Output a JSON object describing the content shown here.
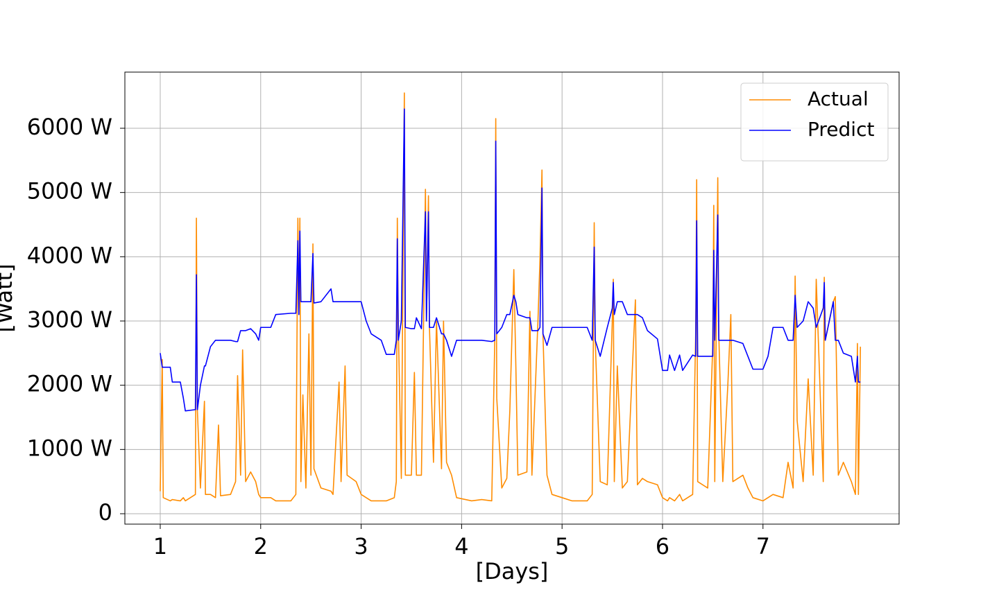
{
  "chart_data": {
    "type": "line",
    "xlabel": "[Days]",
    "ylabel": "[Watt]",
    "x": [
      1.0,
      1.02,
      1.03,
      1.1,
      1.12,
      1.2,
      1.23,
      1.25,
      1.35,
      1.36,
      1.37,
      1.4,
      1.44,
      1.45,
      1.5,
      1.55,
      1.58,
      1.6,
      1.7,
      1.75,
      1.77,
      1.8,
      1.82,
      1.85,
      1.9,
      1.95,
      1.98,
      2.0,
      2.1,
      2.15,
      2.3,
      2.35,
      2.37,
      2.38,
      2.39,
      2.4,
      2.42,
      2.45,
      2.48,
      2.5,
      2.52,
      2.53,
      2.6,
      2.7,
      2.72,
      2.78,
      2.8,
      2.84,
      2.86,
      2.95,
      3.0,
      3.05,
      3.1,
      3.2,
      3.25,
      3.33,
      3.35,
      3.36,
      3.37,
      3.4,
      3.43,
      3.44,
      3.5,
      3.53,
      3.55,
      3.6,
      3.64,
      3.65,
      3.67,
      3.68,
      3.72,
      3.75,
      3.8,
      3.82,
      3.85,
      3.9,
      3.95,
      4.1,
      4.2,
      4.3,
      4.33,
      4.34,
      4.35,
      4.4,
      4.45,
      4.48,
      4.52,
      4.54,
      4.56,
      4.65,
      4.68,
      4.7,
      4.76,
      4.78,
      4.8,
      4.81,
      4.85,
      4.9,
      5.0,
      5.1,
      5.25,
      5.3,
      5.32,
      5.33,
      5.38,
      5.45,
      5.5,
      5.51,
      5.52,
      5.55,
      5.6,
      5.65,
      5.73,
      5.75,
      5.8,
      5.85,
      5.95,
      6.0,
      6.05,
      6.07,
      6.12,
      6.17,
      6.2,
      6.3,
      6.33,
      6.34,
      6.35,
      6.45,
      6.5,
      6.51,
      6.52,
      6.55,
      6.56,
      6.6,
      6.65,
      6.68,
      6.7,
      6.8,
      6.85,
      6.9,
      7.0,
      7.05,
      7.1,
      7.2,
      7.25,
      7.3,
      7.32,
      7.34,
      7.4,
      7.45,
      7.5,
      7.53,
      7.6,
      7.61,
      7.62,
      7.7,
      7.72,
      7.75,
      7.8,
      7.88,
      7.92,
      7.94,
      7.95,
      7.97
    ],
    "series": [
      {
        "name": "Actual",
        "color": "#ff8c00",
        "values": [
          350,
          2400,
          250,
          200,
          220,
          200,
          250,
          200,
          300,
          4600,
          1600,
          400,
          1750,
          300,
          300,
          250,
          1380,
          280,
          300,
          500,
          2150,
          600,
          2550,
          500,
          650,
          500,
          300,
          250,
          250,
          200,
          200,
          300,
          4600,
          3200,
          4600,
          500,
          1850,
          400,
          2800,
          600,
          4200,
          700,
          400,
          350,
          300,
          2050,
          500,
          2300,
          600,
          500,
          300,
          250,
          200,
          200,
          200,
          250,
          500,
          4600,
          2900,
          550,
          6550,
          600,
          600,
          2200,
          600,
          600,
          5050,
          3000,
          4950,
          2900,
          800,
          3000,
          700,
          3000,
          800,
          600,
          250,
          200,
          220,
          200,
          2700,
          6150,
          1800,
          400,
          550,
          1600,
          3800,
          2300,
          600,
          650,
          3150,
          600,
          3000,
          3950,
          5350,
          2800,
          600,
          300,
          250,
          200,
          200,
          300,
          4530,
          2700,
          500,
          450,
          3000,
          3650,
          500,
          2300,
          400,
          500,
          3330,
          450,
          550,
          500,
          450,
          250,
          200,
          250,
          200,
          300,
          200,
          300,
          2800,
          5200,
          500,
          400,
          2600,
          4800,
          500,
          5230,
          2800,
          500,
          2000,
          3100,
          500,
          600,
          400,
          250,
          200,
          250,
          300,
          250,
          800,
          400,
          3700,
          1450,
          500,
          2100,
          600,
          3650,
          500,
          3680,
          2700,
          3300,
          3380,
          600,
          800,
          500,
          300,
          2650,
          300,
          2600
        ]
      },
      {
        "name": "Predict",
        "color": "#0000ff",
        "values": [
          2500,
          2280,
          2280,
          2280,
          2050,
          2050,
          1800,
          1600,
          1620,
          3720,
          1620,
          2000,
          2300,
          2300,
          2600,
          2700,
          2700,
          2700,
          2700,
          2680,
          2680,
          2850,
          2850,
          2850,
          2880,
          2800,
          2700,
          2900,
          2900,
          3100,
          3120,
          3120,
          4250,
          3100,
          4400,
          3300,
          3300,
          3300,
          3300,
          3300,
          4050,
          3280,
          3300,
          3500,
          3300,
          3300,
          3300,
          3300,
          3300,
          3300,
          3300,
          3000,
          2800,
          2700,
          2480,
          2480,
          2700,
          4280,
          2700,
          3000,
          6300,
          2900,
          2880,
          2880,
          3050,
          2880,
          4700,
          3000,
          4700,
          2900,
          2900,
          3050,
          2800,
          2800,
          2700,
          2450,
          2700,
          2700,
          2700,
          2680,
          2700,
          5800,
          2800,
          2900,
          3100,
          3100,
          3400,
          3300,
          3100,
          3050,
          3050,
          2850,
          2850,
          2900,
          5070,
          2800,
          2620,
          2900,
          2900,
          2900,
          2900,
          2700,
          4150,
          2700,
          2450,
          2900,
          3200,
          3600,
          3100,
          3300,
          3300,
          3100,
          3100,
          3100,
          3050,
          2850,
          2720,
          2230,
          2230,
          2470,
          2230,
          2470,
          2230,
          2470,
          2450,
          4560,
          2450,
          2450,
          2450,
          4100,
          2700,
          4650,
          2700,
          2700,
          2700,
          2700,
          2700,
          2650,
          2450,
          2250,
          2250,
          2450,
          2900,
          2900,
          2700,
          2700,
          3400,
          2900,
          3000,
          3300,
          3200,
          2900,
          3200,
          3600,
          2700,
          3300,
          2700,
          2700,
          2500,
          2450,
          2050,
          2450,
          2050,
          2050
        ]
      }
    ],
    "xlim": [
      0.648,
      8.355
    ],
    "ylim": [
      -162,
      6874
    ],
    "xticks": [
      1,
      2,
      3,
      4,
      5,
      6,
      7
    ],
    "yticks": [
      0,
      {
        "value": 1000,
        "label": "1000 W"
      },
      {
        "value": 2000,
        "label": "2000 W"
      },
      {
        "value": 3000,
        "label": "3000 W"
      },
      {
        "value": 4000,
        "label": "4000 W"
      },
      {
        "value": 5000,
        "label": "5000 W"
      },
      {
        "value": 6000,
        "label": "6000 W"
      }
    ],
    "grid": true,
    "legend": "upper right"
  }
}
